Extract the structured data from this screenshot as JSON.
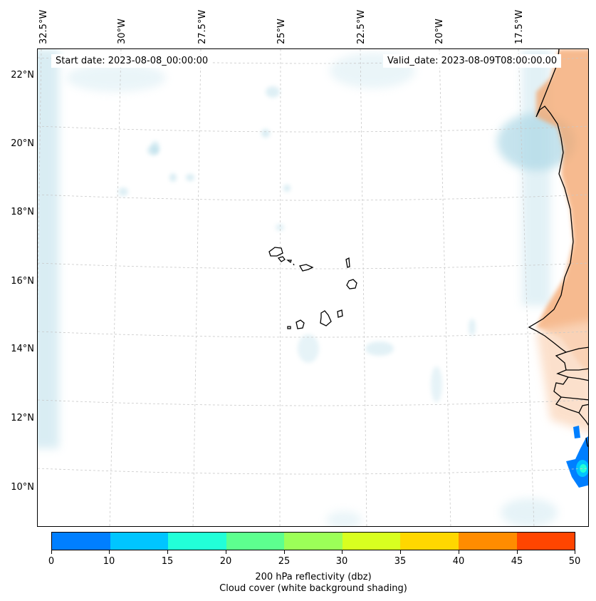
{
  "start_date": "Start date: 2023-08-08_00:00:00",
  "valid_date": "Valid_date: 2023-08-09T08:00:00.00",
  "longitude_labels": [
    "32.5°W",
    "30°W",
    "27.5°W",
    "25°W",
    "22.5°W",
    "20°W",
    "17.5°W"
  ],
  "latitude_labels": [
    "22°N",
    "20°N",
    "18°N",
    "16°N",
    "14°N",
    "12°N",
    "10°N"
  ],
  "colorbar": {
    "ticks": [
      "0",
      "10",
      "15",
      "20",
      "25",
      "30",
      "35",
      "40",
      "45",
      "50"
    ],
    "colors": [
      "#007fff",
      "#00c5ff",
      "#22ffd8",
      "#5dff8f",
      "#9cff58",
      "#d8ff20",
      "#ffd700",
      "#ff8c00",
      "#ff4500"
    ],
    "label": "200 hPa reflectivity (dbz)",
    "sublabel": "Cloud cover (white background shading)"
  },
  "colors": {
    "land_shading": "#f4a46a",
    "cloud_shading": "#add8e6",
    "coastline": "#000000",
    "gridline": "#c8c8c8"
  }
}
